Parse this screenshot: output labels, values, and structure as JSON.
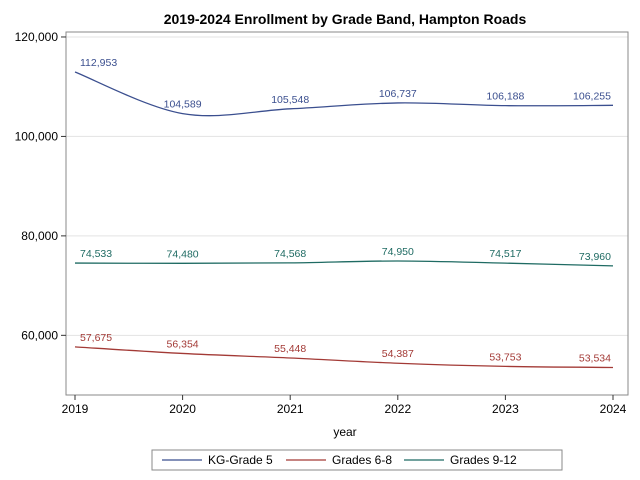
{
  "chart_data": {
    "type": "line",
    "title": "2019-2024 Enrollment by Grade Band, Hampton Roads",
    "xlabel": "year",
    "ylabel": "",
    "x": [
      2019,
      2020,
      2021,
      2022,
      2023,
      2024
    ],
    "x_tick_labels": [
      "2019",
      "2020",
      "2021",
      "2022",
      "2023",
      "2024"
    ],
    "ylim": [
      48000,
      121000
    ],
    "y_ticks": [
      60000,
      80000,
      100000,
      120000
    ],
    "y_tick_labels": [
      "60,000",
      "80,000",
      "100,000",
      "120,000"
    ],
    "grid": true,
    "legend_position": "bottom",
    "series": [
      {
        "name": "KG-Grade 5",
        "color": "#3b4f8f",
        "values": [
          112953,
          104589,
          105548,
          106737,
          106188,
          106255
        ],
        "labels": [
          "112,953",
          "104,589",
          "105,548",
          "106,737",
          "106,188",
          "106,255"
        ]
      },
      {
        "name": "Grades 6-8",
        "color": "#a33a36",
        "values": [
          57675,
          56354,
          55448,
          54387,
          53753,
          53534
        ],
        "labels": [
          "57,675",
          "56,354",
          "55,448",
          "54,387",
          "53,753",
          "53,534"
        ]
      },
      {
        "name": "Grades 9-12",
        "color": "#1f6b63",
        "values": [
          74533,
          74480,
          74568,
          74950,
          74517,
          73960
        ],
        "labels": [
          "74,533",
          "74,480",
          "74,568",
          "74,950",
          "74,517",
          "73,960"
        ]
      }
    ]
  }
}
